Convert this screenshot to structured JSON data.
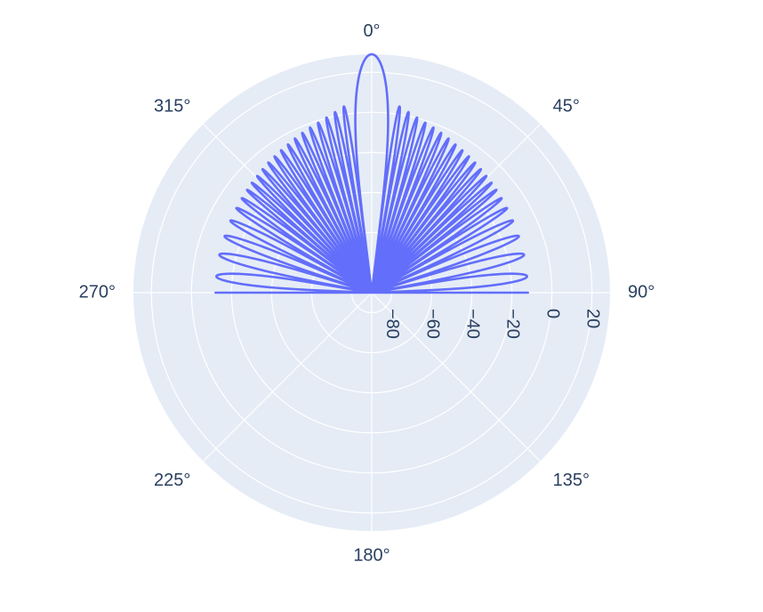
{
  "chart_data": {
    "type": "polar-line",
    "angular_axis": {
      "direction": "clockwise",
      "rotation_zero": "top",
      "ticks": [
        0,
        45,
        90,
        135,
        180,
        225,
        270,
        315
      ],
      "tick_labels": [
        "0°",
        "45°",
        "90°",
        "135°",
        "180°",
        "225°",
        "270°",
        "315°"
      ]
    },
    "radial_axis": {
      "range": [
        -90,
        29
      ],
      "ticks": [
        -80,
        -60,
        -40,
        -20,
        0,
        20
      ],
      "tick_labels": [
        "−80",
        "−60",
        "−40",
        "−20",
        "0",
        "20"
      ],
      "tick_angle": 90
    },
    "series": [
      {
        "color": "#636efa",
        "shape": "radiation pattern: main lobe at 0° plus side lobes on the upper half, decaying toward ±90°",
        "main_lobe": {
          "angle_deg": 0,
          "peak": 29,
          "half_width_deg": 7
        },
        "lobes_right": [
          {
            "peak_angle": 8.5,
            "peak": 4,
            "width": 2.6
          },
          {
            "peak_angle": 11.5,
            "peak": 2,
            "width": 2.6
          },
          {
            "peak_angle": 14.5,
            "peak": 0.3,
            "width": 2.6
          },
          {
            "peak_angle": 17.5,
            "peak": -1,
            "width": 2.6
          },
          {
            "peak_angle": 20.5,
            "peak": -2,
            "width": 2.6
          },
          {
            "peak_angle": 23.5,
            "peak": -3,
            "width": 2.6
          },
          {
            "peak_angle": 26.5,
            "peak": -4,
            "width": 2.6
          },
          {
            "peak_angle": 29.5,
            "peak": -5,
            "width": 2.6
          },
          {
            "peak_angle": 32.5,
            "peak": -5.7,
            "width": 2.6
          },
          {
            "peak_angle": 35.5,
            "peak": -6.4,
            "width": 2.6
          },
          {
            "peak_angle": 38.5,
            "peak": -7,
            "width": 2.6
          },
          {
            "peak_angle": 41.5,
            "peak": -7.7,
            "width": 2.6
          },
          {
            "peak_angle": 44.5,
            "peak": -8.3,
            "width": 2.6
          },
          {
            "peak_angle": 47.5,
            "peak": -8.8,
            "width": 2.6
          },
          {
            "peak_angle": 50.5,
            "peak": -9.3,
            "width": 2.6
          },
          {
            "peak_angle": 54,
            "peak": -9.8,
            "width": 3.2
          },
          {
            "peak_angle": 58,
            "peak": -10.3,
            "width": 3.6
          },
          {
            "peak_angle": 63,
            "peak": -10.8,
            "width": 4.4
          },
          {
            "peak_angle": 69,
            "peak": -11.3,
            "width": 5.2
          },
          {
            "peak_angle": 76,
            "peak": -11.6,
            "width": 6.4
          },
          {
            "peak_angle": 84,
            "peak": -12,
            "width": 7.4
          }
        ],
        "lobes_left": [
          {
            "peak_angle": 8.5,
            "peak": 4,
            "width": 2.6
          },
          {
            "peak_angle": 11.5,
            "peak": 2,
            "width": 2.6
          },
          {
            "peak_angle": 14.5,
            "peak": 0.3,
            "width": 2.6
          },
          {
            "peak_angle": 17.5,
            "peak": -1,
            "width": 2.6
          },
          {
            "peak_angle": 20.5,
            "peak": -2,
            "width": 2.6
          },
          {
            "peak_angle": 23.5,
            "peak": -3,
            "width": 2.6
          },
          {
            "peak_angle": 26.5,
            "peak": -4,
            "width": 2.6
          },
          {
            "peak_angle": 29.5,
            "peak": -5,
            "width": 2.6
          },
          {
            "peak_angle": 32.5,
            "peak": -5.7,
            "width": 2.6
          },
          {
            "peak_angle": 35.5,
            "peak": -6.4,
            "width": 2.6
          },
          {
            "peak_angle": 38.5,
            "peak": -7,
            "width": 2.6
          },
          {
            "peak_angle": 41.5,
            "peak": -7.7,
            "width": 2.6
          },
          {
            "peak_angle": 44.5,
            "peak": -8.3,
            "width": 2.6
          },
          {
            "peak_angle": 47.5,
            "peak": -8.8,
            "width": 2.6
          },
          {
            "peak_angle": 50.5,
            "peak": -9.3,
            "width": 2.6
          },
          {
            "peak_angle": 54,
            "peak": -9.8,
            "width": 3.2
          },
          {
            "peak_angle": 58,
            "peak": -10.3,
            "width": 3.6
          },
          {
            "peak_angle": 63,
            "peak": -10.8,
            "width": 4.4
          },
          {
            "peak_angle": 69,
            "peak": -11.3,
            "width": 5.2
          },
          {
            "peak_angle": 76,
            "peak": -11.6,
            "width": 6.4
          },
          {
            "peak_angle": 84,
            "peak": -12,
            "width": 7.4
          }
        ],
        "null_value": -90,
        "edge_value_at_90": -12
      }
    ],
    "background_color": "#e5ecf6",
    "grid_color": "#ffffff",
    "grid": true
  }
}
